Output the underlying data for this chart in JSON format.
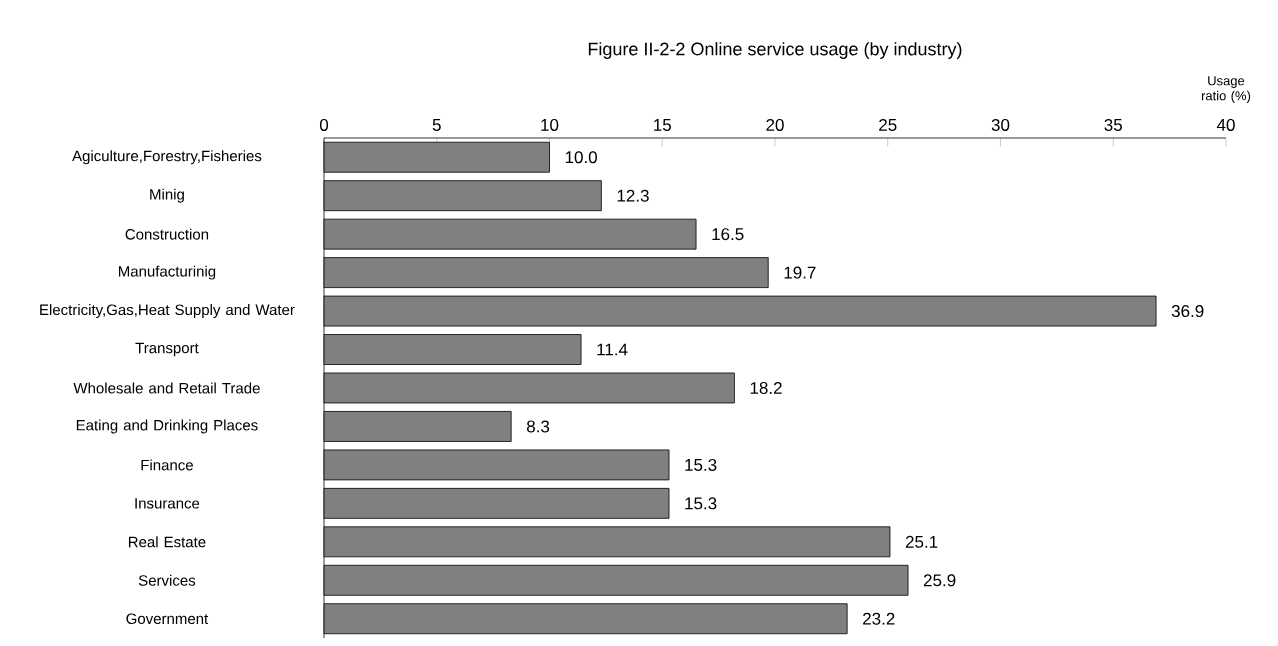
{
  "chart_data": {
    "type": "bar",
    "orientation": "horizontal",
    "title": "Figure II-2-2 Online service usage (by industry)",
    "xlabel": "Usage ratio (%)",
    "categories": [
      "Agiculture,Forestry,Fisheries",
      "Minig",
      "Construction",
      "Manufacturinig",
      "Electricity,Gas,Heat Supply and Water",
      "Transport",
      "Wholesale and Retail Trade",
      "Eating and Drinking Places",
      "Finance",
      "Insurance",
      "Real Estate",
      "Services",
      "Government"
    ],
    "values": [
      10.0,
      12.3,
      16.5,
      19.7,
      36.9,
      11.4,
      18.2,
      8.3,
      15.3,
      15.3,
      25.1,
      25.9,
      23.2
    ],
    "value_labels": [
      "10.0",
      "12.3",
      "16.5",
      "19.7",
      "36.9",
      "11.4",
      "18.2",
      "8.3",
      "15.3",
      "15.3",
      "25.1",
      "25.9",
      "23.2"
    ],
    "color": "#808080",
    "xlim": [
      0,
      40
    ],
    "xticks": [
      0,
      5,
      10,
      15,
      20,
      25,
      30,
      35,
      40
    ]
  }
}
